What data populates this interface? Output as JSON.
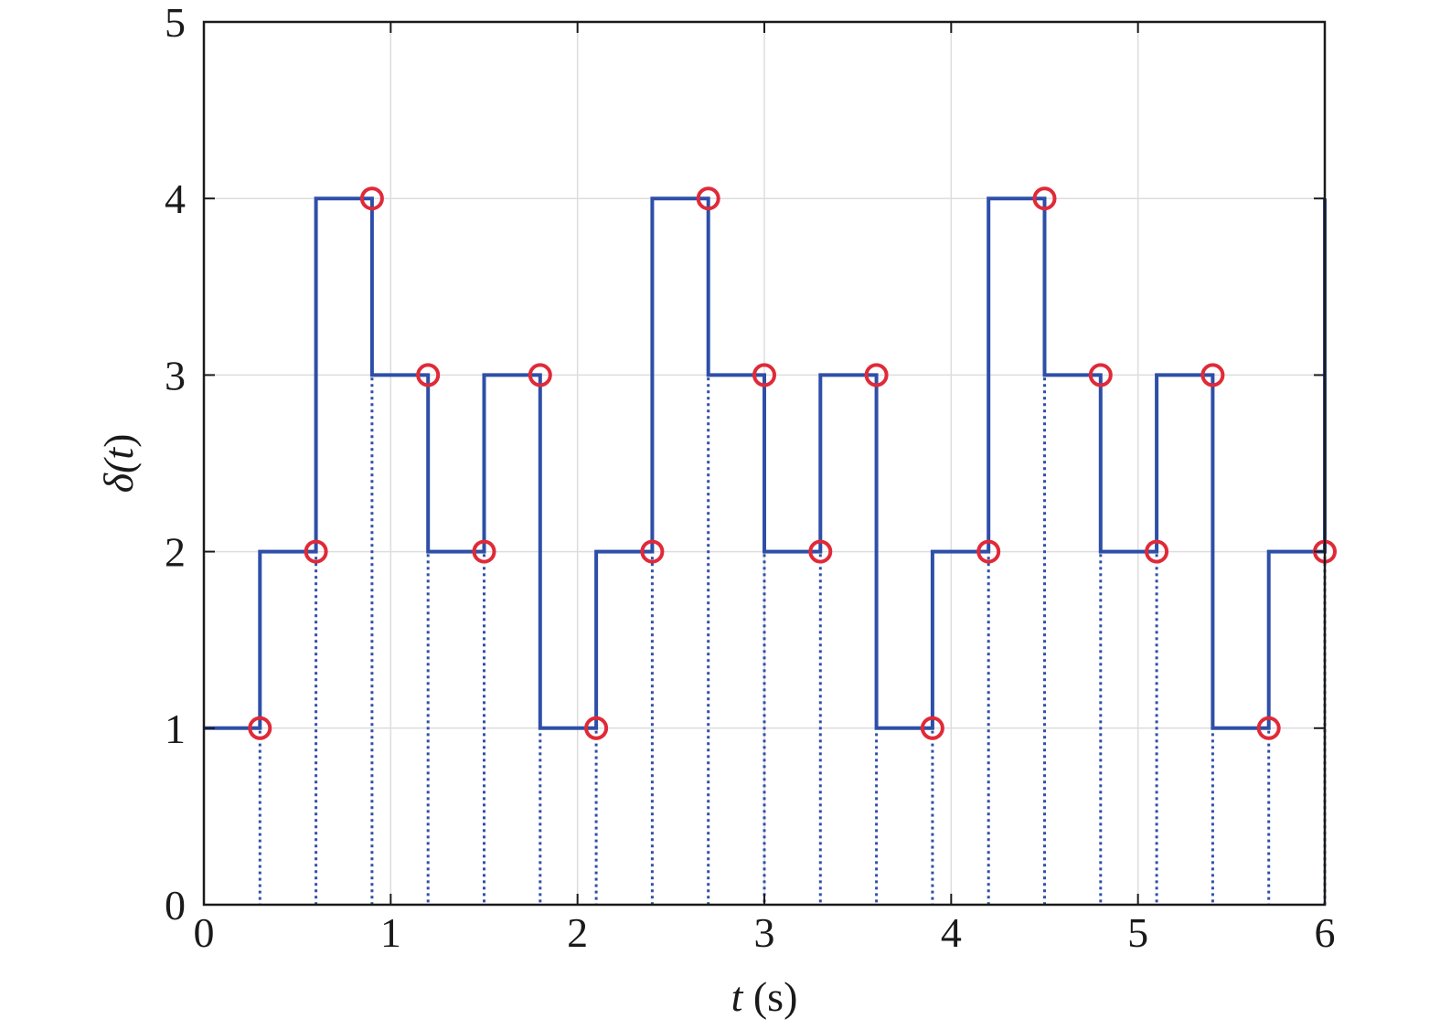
{
  "chart_data": {
    "type": "line",
    "step": "post",
    "xlabel_var": "t",
    "xlabel_unit": " (s)",
    "ylabel_sym": "δ(",
    "ylabel_var": "t",
    "ylabel_close": ")",
    "xlim": [
      0,
      6
    ],
    "ylim": [
      0,
      5
    ],
    "xticks": [
      "0",
      "1",
      "2",
      "3",
      "4",
      "5",
      "6"
    ],
    "yticks": [
      "0",
      "1",
      "2",
      "3",
      "4",
      "5"
    ],
    "grid": true,
    "colors": {
      "line": "#2e4fa8",
      "marker": "#e02a38",
      "grid": "#dddddd",
      "axis": "#1a1a1a"
    },
    "series": [
      {
        "x": [
          0,
          0.3,
          0.6,
          0.9,
          1.2,
          1.5,
          1.8,
          2.1,
          2.4,
          2.7,
          3.0,
          3.3,
          3.6,
          3.9,
          4.2,
          4.5,
          4.8,
          5.1,
          5.4,
          5.7,
          6.0
        ],
        "values": [
          1,
          2,
          4,
          3,
          2,
          3,
          1,
          2,
          4,
          3,
          2,
          3,
          1,
          2,
          4,
          3,
          2,
          3,
          1,
          2,
          4
        ]
      }
    ],
    "markers": {
      "x": [
        0.3,
        0.6,
        0.9,
        1.2,
        1.5,
        1.8,
        2.1,
        2.4,
        2.7,
        3.0,
        3.3,
        3.6,
        3.9,
        4.2,
        4.5,
        4.8,
        5.1,
        5.4,
        5.7,
        6.0
      ],
      "y": [
        1,
        2,
        4,
        3,
        2,
        3,
        1,
        2,
        4,
        3,
        2,
        3,
        1,
        2,
        4,
        3,
        2,
        3,
        1,
        2
      ]
    }
  }
}
